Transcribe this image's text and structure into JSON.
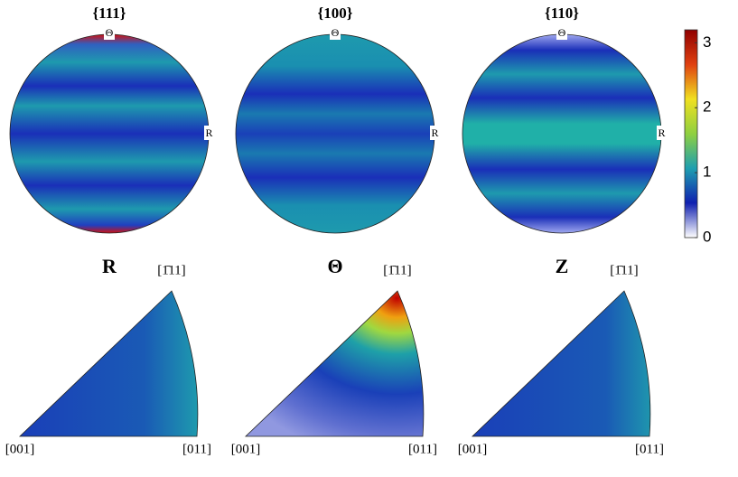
{
  "pole_figures": [
    {
      "title": "{111}",
      "top_label": "Θ",
      "right_label": "R"
    },
    {
      "title": "{100}",
      "top_label": "Θ",
      "right_label": "R"
    },
    {
      "title": "{110}",
      "top_label": "Θ",
      "right_label": "R"
    }
  ],
  "inverse_pole_figures": [
    {
      "title": "R",
      "apex_label": "[1̄11]",
      "left_label": "[001]",
      "right_label": "[011]"
    },
    {
      "title": "Θ",
      "apex_label": "[1̄11]",
      "left_label": "[001]",
      "right_label": "[011]"
    },
    {
      "title": "Z",
      "apex_label": "[1̄11]",
      "left_label": "[001]",
      "right_label": "[011]"
    }
  ],
  "colorbar": {
    "lim": [
      0,
      3.2
    ],
    "ticks": [
      0,
      1,
      2,
      3
    ],
    "colormap": [
      "#ffffff",
      "#1020b0",
      "#1e9fb0",
      "#8fd040",
      "#f0e020",
      "#e04010",
      "#900000"
    ]
  }
}
